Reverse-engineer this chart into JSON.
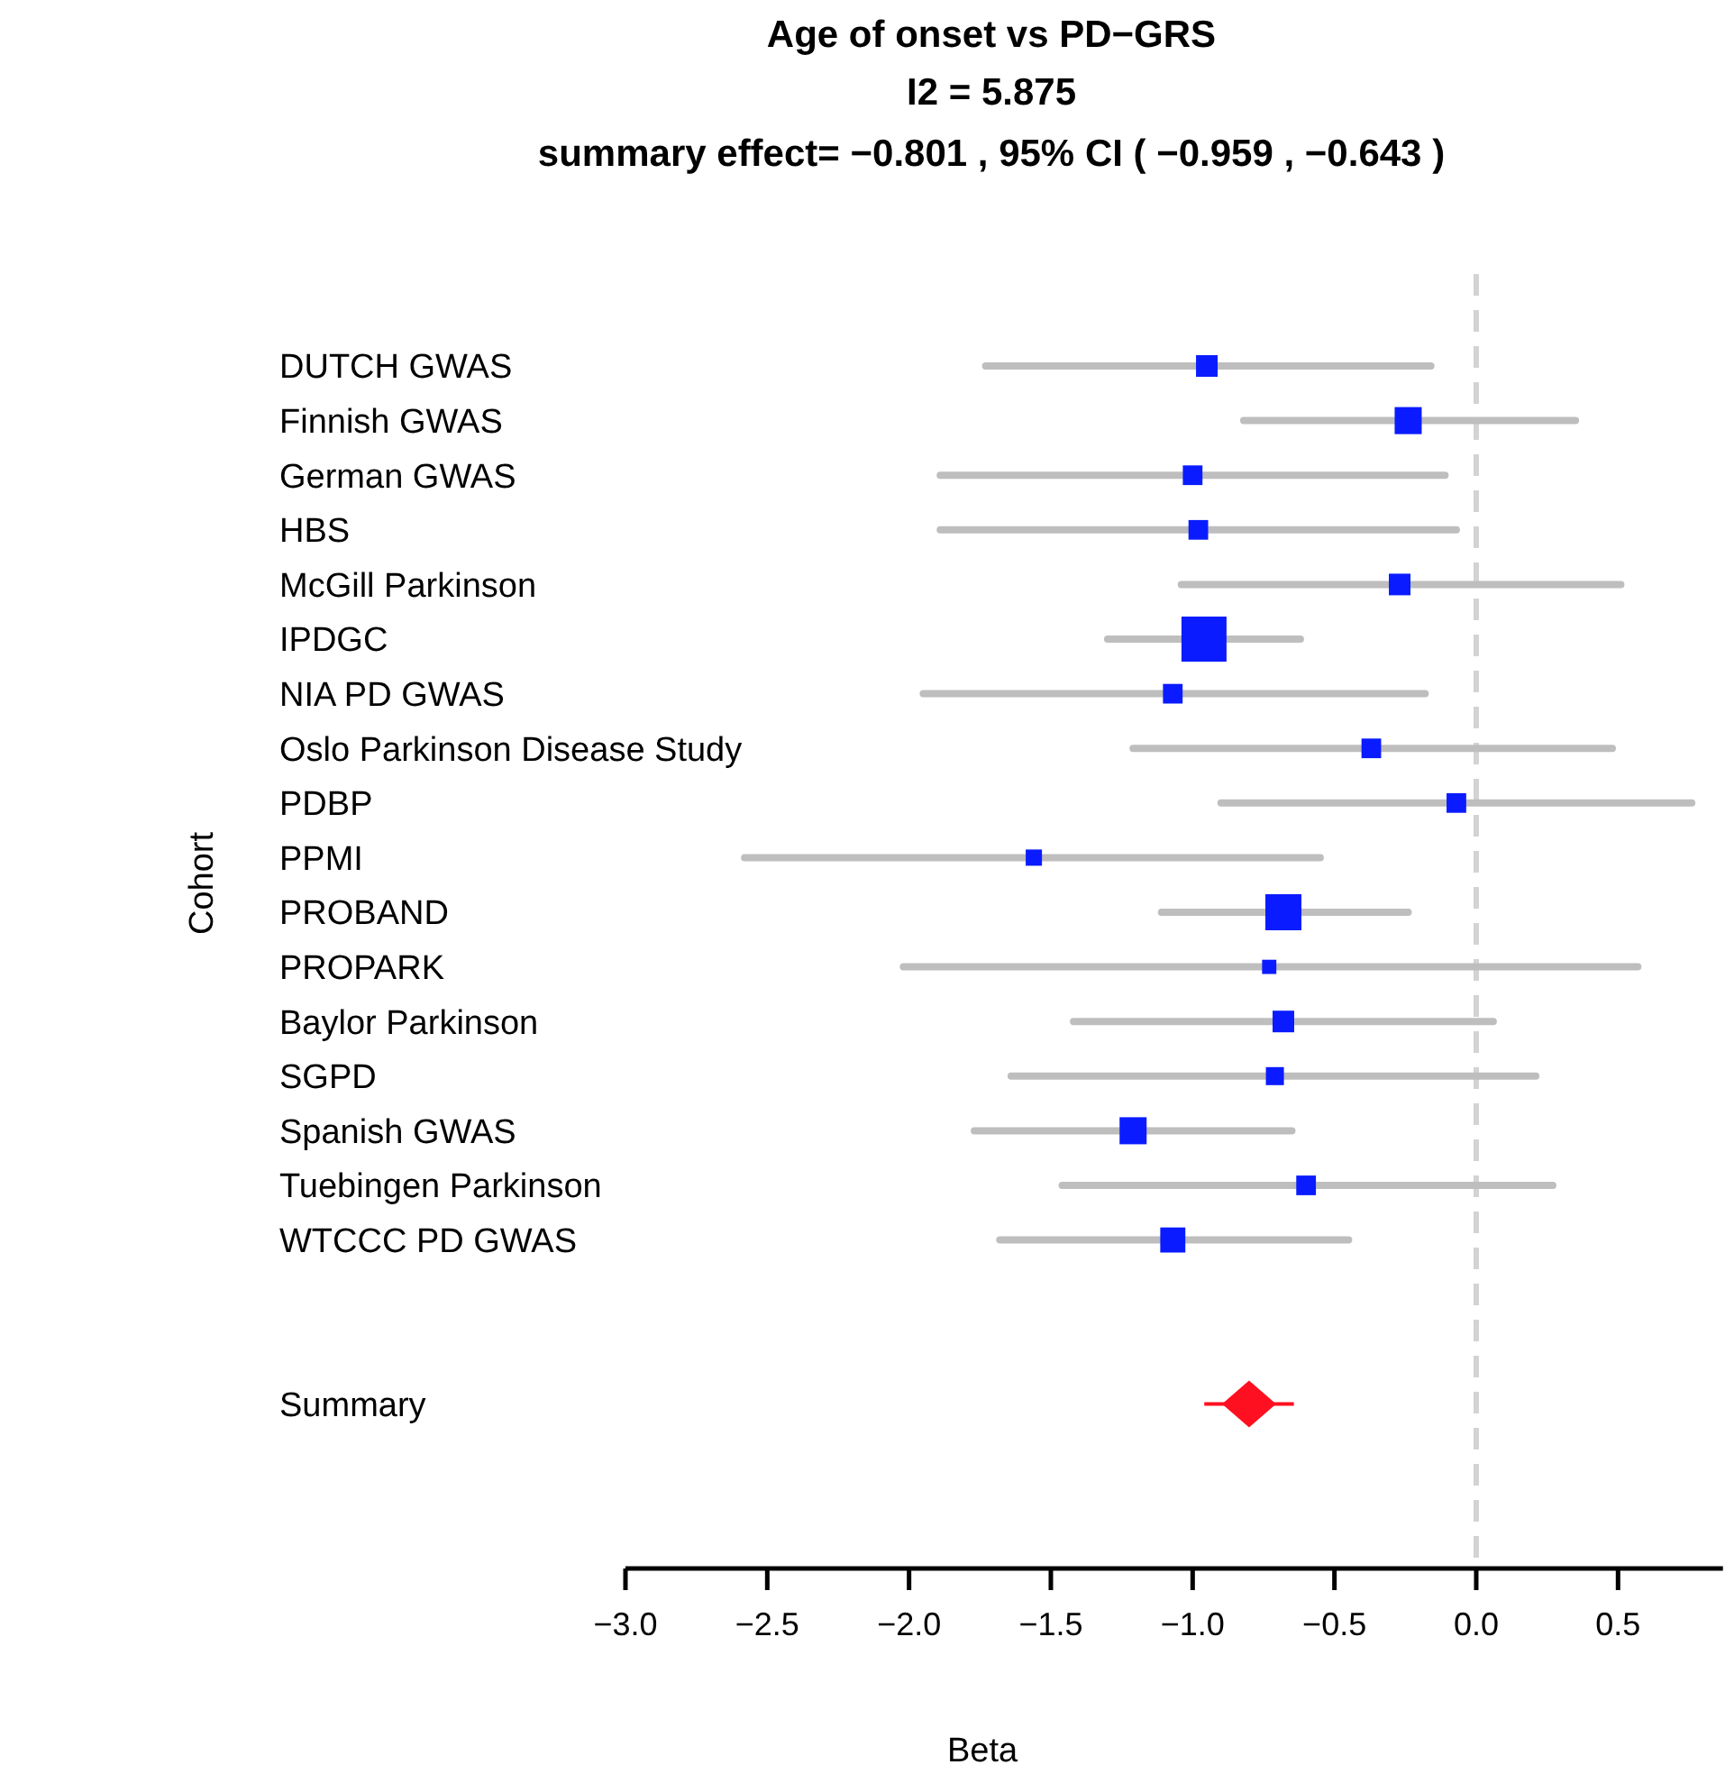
{
  "chart_data": {
    "type": "scatter",
    "orientation": "horizontal",
    "title": "Age of onset vs PD−GRS",
    "subtitle": "I2 = 5.875",
    "annotations": [
      "summary effect= −0.801 , 95% CI ( −0.959 , −0.643 )"
    ],
    "xlabel": "Beta",
    "ylabel": "Cohort",
    "categories": [
      "DUTCH GWAS",
      "Finnish GWAS",
      "German GWAS",
      "HBS",
      "McGill Parkinson",
      "IPDGC",
      "NIA PD GWAS",
      "Oslo Parkinson Disease Study",
      "PDBP",
      "PPMI",
      "PROBAND",
      "PROPARK",
      "Baylor Parkinson",
      "SGPD",
      "Spanish GWAS",
      "Tuebingen Parkinson",
      "WTCCC PD GWAS",
      null,
      null,
      "Summary"
    ],
    "xlim": [
      -3.0,
      0.87
    ],
    "xticks": [
      {
        "value": -3,
        "label": "−3.0"
      },
      {
        "value": -2.5,
        "label": "−2.5"
      },
      {
        "value": -2,
        "label": "−2.0"
      },
      {
        "value": -1.5,
        "label": "−1.5"
      },
      {
        "value": -1,
        "label": "−1.0"
      },
      {
        "value": -0.5,
        "label": "−0.5"
      },
      {
        "value": 0,
        "label": "0.0"
      },
      {
        "value": 0.5,
        "label": "0.5"
      }
    ],
    "ref_lines": [
      {
        "axis": "x",
        "value": 0,
        "color": "#d3d3d3",
        "line_style": "dashed"
      }
    ],
    "series": [
      {
        "color": "#0a1cff",
        "marker": "square",
        "values": [
          -0.95,
          -0.24,
          -1.0,
          -0.98,
          -0.27,
          -0.96,
          -1.07,
          -0.37,
          -0.07,
          -1.56,
          -0.68,
          -0.73,
          -0.68,
          -0.71,
          -1.21,
          -0.6,
          -1.07,
          null,
          null,
          null
        ],
        "errors": [
          [
            -1.73,
            -0.16
          ],
          [
            -0.82,
            0.35
          ],
          [
            -1.89,
            -0.11
          ],
          [
            -1.89,
            -0.07
          ],
          [
            -1.04,
            0.51
          ],
          [
            -1.3,
            -0.62
          ],
          [
            -1.95,
            -0.18
          ],
          [
            -1.21,
            0.48
          ],
          [
            -0.9,
            0.76
          ],
          [
            -2.58,
            -0.55
          ],
          [
            -1.11,
            -0.24
          ],
          [
            -2.02,
            0.57
          ],
          [
            -1.42,
            0.06
          ],
          [
            -1.64,
            0.21
          ],
          [
            -1.77,
            -0.65
          ],
          [
            -1.46,
            0.27
          ],
          [
            -1.68,
            -0.45
          ],
          null,
          null,
          null
        ],
        "sizes": [
          0.23,
          0.36,
          0.19,
          0.19,
          0.23,
          1,
          0.19,
          0.19,
          0.19,
          0.13,
          0.64,
          0.1,
          0.23,
          0.16,
          0.36,
          0.19,
          0.31,
          null,
          null,
          null
        ]
      },
      {
        "color": "#ff1020",
        "marker": "diamond",
        "values": [
          null,
          null,
          null,
          null,
          null,
          null,
          null,
          null,
          null,
          null,
          null,
          null,
          null,
          null,
          null,
          null,
          null,
          null,
          null,
          -0.801
        ],
        "errors": [
          null,
          null,
          null,
          null,
          null,
          null,
          null,
          null,
          null,
          null,
          null,
          null,
          null,
          null,
          null,
          null,
          null,
          null,
          null,
          [
            -0.959,
            -0.643
          ]
        ]
      }
    ]
  }
}
